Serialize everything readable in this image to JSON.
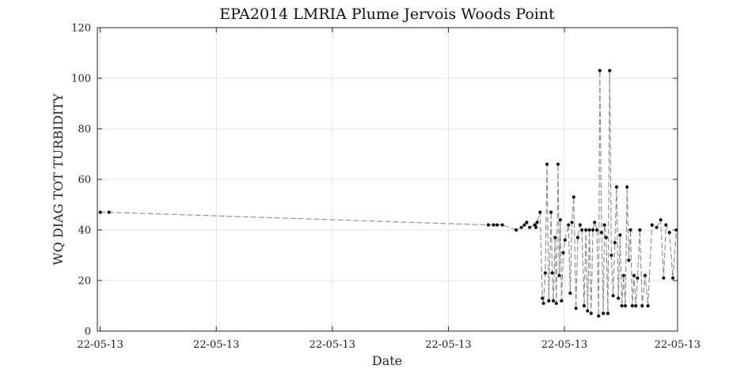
{
  "chart_data": {
    "type": "line",
    "title": "EPA2014 LMRIA Plume Jervois Woods Point",
    "xlabel": "Date",
    "ylabel": "WQ DIAG TOT TURBIDITY",
    "ylim": [
      0,
      120
    ],
    "yticks": [
      0,
      20,
      40,
      60,
      80,
      100,
      120
    ],
    "xlim": [
      0,
      100
    ],
    "xtick_values": [
      0.5,
      20.5,
      40.5,
      60.5,
      80.5,
      100
    ],
    "xtick_labels": [
      "22-05-13",
      "22-05-13",
      "22-05-13",
      "22-05-13",
      "22-05-13",
      "22-05-13"
    ],
    "grid": true,
    "series": [
      {
        "line_color": "#8a8a8a",
        "marker_color": "#111111",
        "x": [
          0.5,
          2.0,
          67.4,
          68.3,
          68.9,
          69.8,
          72.2,
          73.1,
          73.6,
          74.0,
          74.5,
          75.4,
          75.6,
          75.8,
          76.3,
          76.7,
          76.9,
          77.2,
          77.5,
          77.8,
          78.2,
          78.4,
          78.6,
          78.9,
          79.1,
          79.4,
          79.6,
          79.8,
          80.0,
          80.3,
          80.6,
          81.2,
          81.5,
          81.8,
          82.1,
          82.5,
          82.8,
          83.2,
          83.5,
          83.9,
          84.2,
          84.5,
          84.8,
          85.1,
          85.4,
          85.7,
          86.1,
          86.4,
          86.6,
          86.9,
          87.2,
          87.4,
          87.7,
          88.0,
          88.3,
          88.6,
          88.9,
          89.2,
          89.5,
          89.8,
          90.1,
          90.4,
          90.7,
          91.0,
          91.3,
          91.6,
          91.9,
          92.2,
          92.5,
          92.8,
          93.1,
          93.5,
          93.9,
          94.4,
          94.9,
          95.6,
          96.4,
          97.1,
          97.6,
          98.0,
          98.6,
          99.2,
          99.8
        ],
        "y": [
          47,
          47,
          42,
          42,
          42,
          42,
          40,
          41,
          42,
          43,
          41,
          42,
          41,
          43,
          47,
          13,
          11,
          23,
          66,
          12,
          47,
          23,
          12,
          37,
          11,
          66,
          22,
          44,
          12,
          31,
          36,
          42,
          15,
          43,
          53,
          9,
          37,
          42,
          40,
          10,
          40,
          8,
          40,
          7,
          40,
          43,
          40,
          6,
          103,
          39,
          7,
          42,
          37,
          7,
          103,
          30,
          14,
          35,
          57,
          13,
          38,
          10,
          22,
          10,
          57,
          28,
          40,
          10,
          22,
          10,
          21,
          40,
          10,
          22,
          10,
          42,
          41,
          44,
          21,
          42,
          39,
          21,
          40
        ]
      }
    ]
  }
}
